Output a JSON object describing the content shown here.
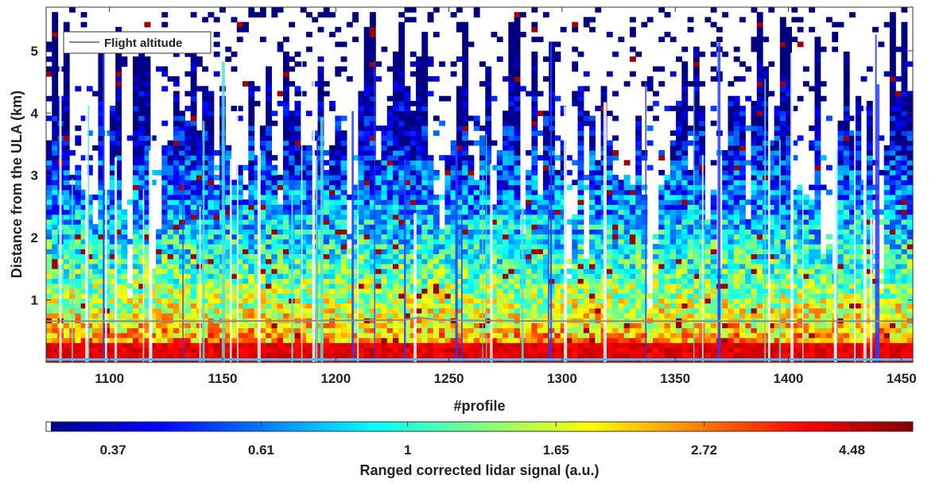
{
  "chart_data": {
    "type": "heatmap",
    "xlabel": "#profile",
    "ylabel": "Distance from the ULA (km)",
    "xlim": [
      1072,
      1455
    ],
    "ylim": [
      0,
      5.7
    ],
    "xticks": [
      1100,
      1150,
      1200,
      1250,
      1300,
      1350,
      1400,
      1450
    ],
    "yticks": [
      1,
      2,
      3,
      4,
      5
    ],
    "colormap": "jet",
    "colorbar": {
      "label": "Ranged corrected lidar signal (a.u.)",
      "scale": "log",
      "range": [
        0.3,
        5.5
      ],
      "ticks": [
        0.37,
        0.61,
        1,
        1.65,
        2.72,
        4.48
      ],
      "tick_labels": [
        "0.37",
        "0.61",
        "1",
        "1.65",
        "2.72",
        "4.48"
      ]
    },
    "legend": {
      "position": "top-left",
      "entries": [
        "Flight altitude"
      ]
    },
    "series": [
      {
        "name": "Flight altitude",
        "color": "#8c8c8c",
        "x": [
          1072,
          1100,
          1150,
          1200,
          1230,
          1237,
          1245,
          1260,
          1300,
          1350,
          1400,
          1455
        ],
        "y": [
          0.66,
          0.66,
          0.66,
          0.67,
          0.68,
          0.72,
          0.68,
          0.67,
          0.66,
          0.66,
          0.66,
          0.66
        ]
      }
    ]
  }
}
